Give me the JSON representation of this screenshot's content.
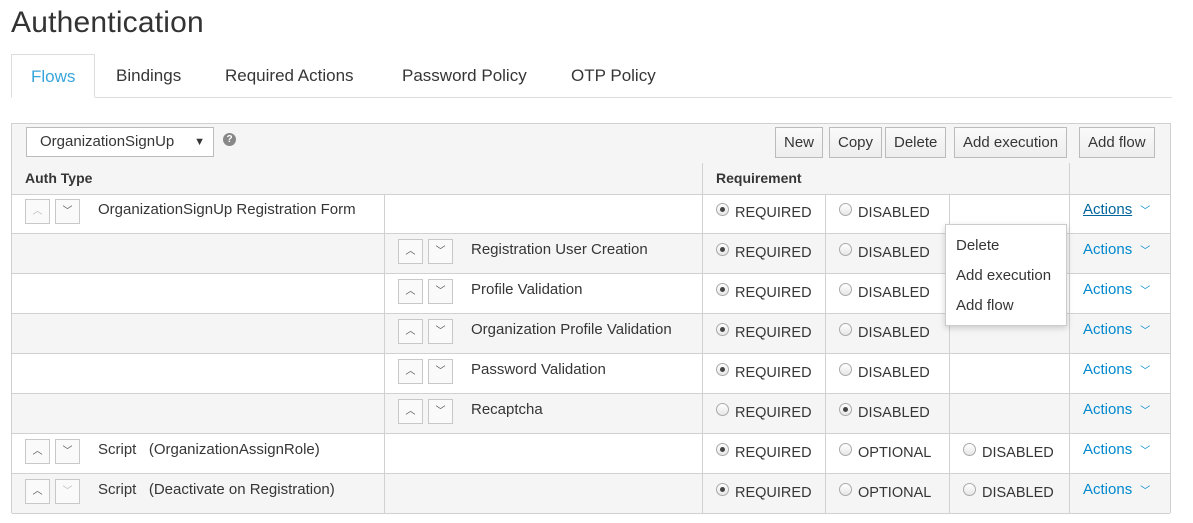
{
  "page": {
    "title": "Authentication"
  },
  "tabs": [
    {
      "label": "Flows",
      "active": true
    },
    {
      "label": "Bindings"
    },
    {
      "label": "Required Actions"
    },
    {
      "label": "Password Policy"
    },
    {
      "label": "OTP Policy"
    }
  ],
  "toolbar": {
    "flow_select": "OrganizationSignUp",
    "help_icon": "?",
    "buttons": [
      "New",
      "Copy",
      "Delete",
      "Add execution",
      "Add flow"
    ]
  },
  "table": {
    "headers": {
      "auth_type": "Auth Type",
      "requirement": "Requirement"
    }
  },
  "flow": {
    "rows": [
      {
        "label": "OrganizationSignUp Registration Form",
        "level": 0,
        "options": [
          "REQUIRED",
          "DISABLED"
        ],
        "selected": "REQUIRED",
        "actions": "Actions",
        "up_disabled": true
      },
      {
        "label": "Registration User Creation",
        "level": 1,
        "options": [
          "REQUIRED",
          "DISABLED"
        ],
        "selected": "REQUIRED",
        "actions": "Actions"
      },
      {
        "label": "Profile Validation",
        "level": 1,
        "options": [
          "REQUIRED",
          "DISABLED"
        ],
        "selected": "REQUIRED",
        "actions": "Actions"
      },
      {
        "label": "Organization Profile Validation",
        "level": 1,
        "options": [
          "REQUIRED",
          "DISABLED"
        ],
        "selected": "REQUIRED",
        "actions": "Actions"
      },
      {
        "label": "Password Validation",
        "level": 1,
        "options": [
          "REQUIRED",
          "DISABLED"
        ],
        "selected": "REQUIRED",
        "actions": "Actions"
      },
      {
        "label": "Recaptcha",
        "level": 1,
        "options": [
          "REQUIRED",
          "DISABLED"
        ],
        "selected": "DISABLED",
        "actions": "Actions"
      },
      {
        "label": "Script   (OrganizationAssignRole)",
        "level": 0,
        "options": [
          "REQUIRED",
          "OPTIONAL",
          "DISABLED"
        ],
        "selected": "REQUIRED",
        "actions": "Actions"
      },
      {
        "label": "Script   (Deactivate on Registration)",
        "level": 0,
        "options": [
          "REQUIRED",
          "OPTIONAL",
          "DISABLED"
        ],
        "selected": "REQUIRED",
        "actions": "Actions",
        "down_disabled": true
      }
    ]
  },
  "actions_menu": {
    "items": [
      "Delete",
      "Add execution",
      "Add flow"
    ]
  },
  "colors": {
    "accent": "#39a5dc",
    "link": "#0088ce",
    "row_alt": "#f5f5f5",
    "border": "#d1d1d1"
  }
}
